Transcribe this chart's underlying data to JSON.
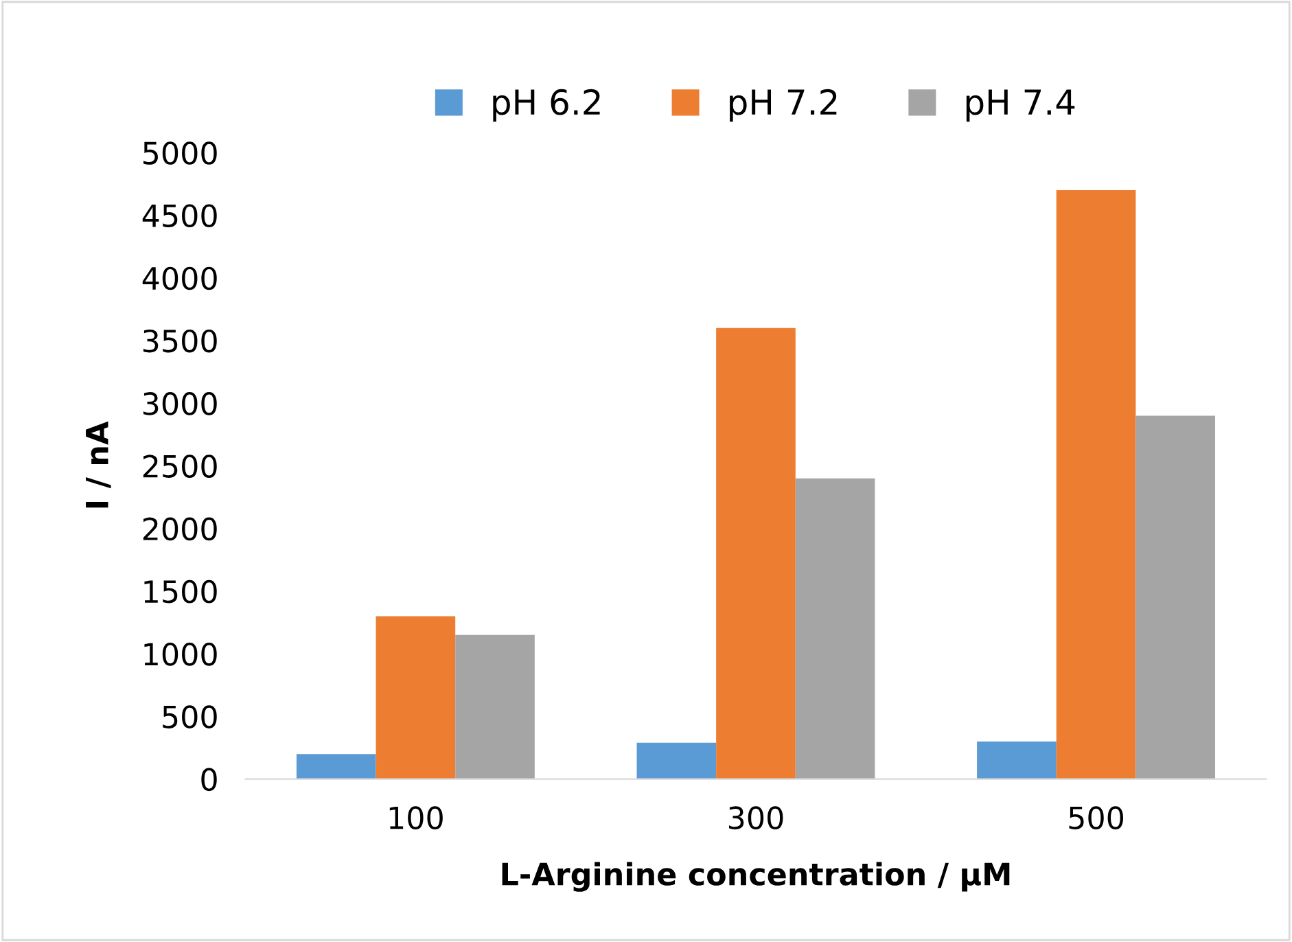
{
  "chart_data": {
    "type": "bar",
    "xlabel": "L-Arginine concentration / μM",
    "ylabel": "I / nA",
    "categories": [
      "100",
      "300",
      "500"
    ],
    "series": [
      {
        "name": "pH 6.2",
        "color": "#5b9bd5",
        "values": [
          200,
          290,
          300
        ]
      },
      {
        "name": "pH 7.2",
        "color": "#ed7d31",
        "values": [
          1300,
          3600,
          4700
        ]
      },
      {
        "name": "pH 7.4",
        "color": "#a5a5a5",
        "values": [
          1150,
          2400,
          2900
        ]
      }
    ],
    "ylim": [
      0,
      5000
    ],
    "yticks": [
      0,
      500,
      1000,
      1500,
      2000,
      2500,
      3000,
      3500,
      4000,
      4500,
      5000
    ],
    "grid": false,
    "legend": "top"
  }
}
